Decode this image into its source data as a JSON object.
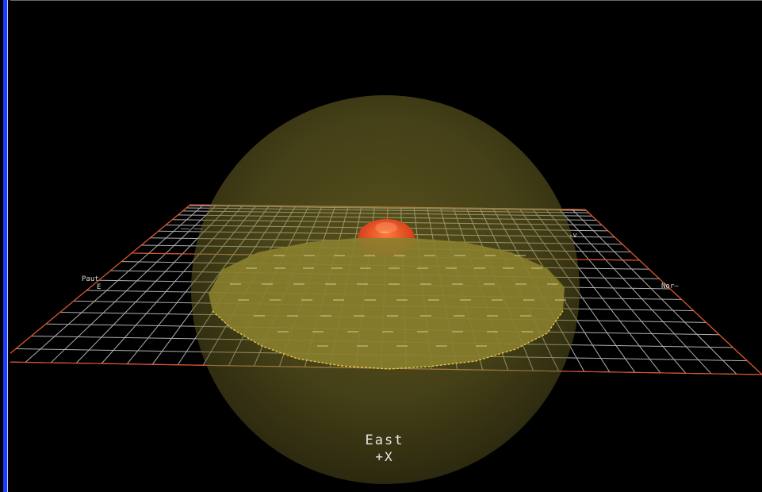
{
  "view": {
    "background": "#000000",
    "accent_left_bar": "#1a3dff"
  },
  "scene": {
    "sphere_color": "#6b6424",
    "disk_color": "#8a7f2e",
    "disk_edge_color": "#e3c24a",
    "red_blob_color": "#d8431e",
    "grid_color": "#cfcfcf",
    "grid_border_color": "#e0542a"
  },
  "axis": {
    "name": "East",
    "direction": "+X"
  },
  "grid_labels": {
    "left": "Paut",
    "left_sub": "E",
    "upper_left": "–– ––",
    "upper_right": "-v",
    "right": "Nor–",
    "center": "——"
  }
}
